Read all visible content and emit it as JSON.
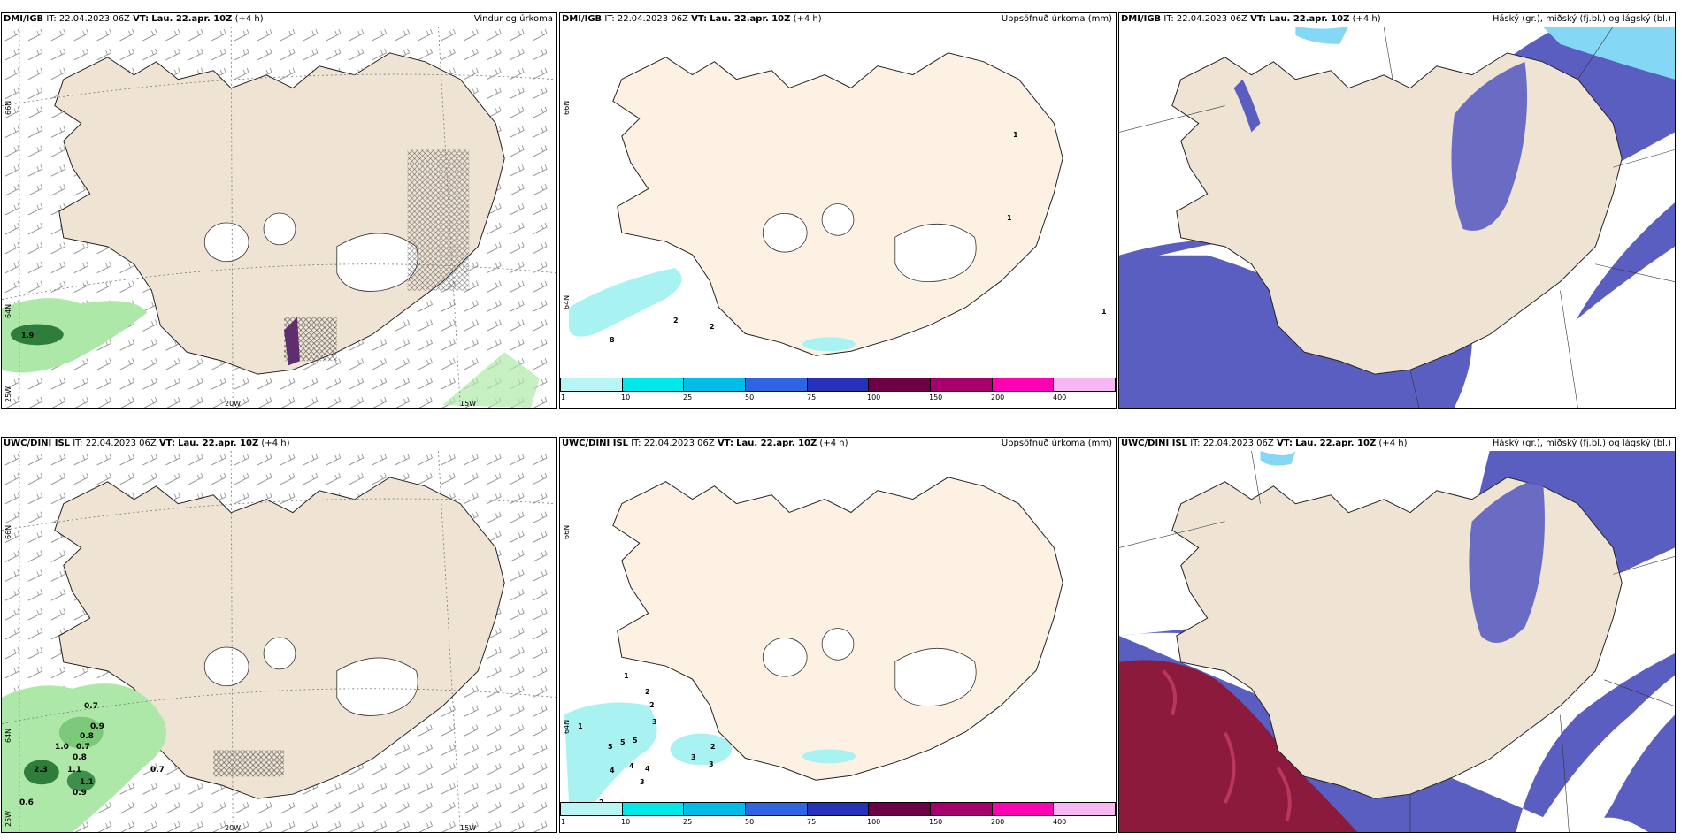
{
  "panels": [
    {
      "source": "DMI/IGB",
      "it_label": "IT:",
      "it_value": "22.04.2023 06Z",
      "vt_label": "VT:",
      "vt_value": "Lau. 22.apr. 10Z",
      "lead": "(+4 h)",
      "right_title": "Vindur og úrkoma",
      "lat_labels": [
        "66N",
        "64N"
      ],
      "lon_labels": [
        "25W",
        "20W",
        "15W"
      ]
    },
    {
      "source": "DMI/IGB",
      "it_label": "IT:",
      "it_value": "22.04.2023 06Z",
      "vt_label": "VT:",
      "vt_value": "Lau. 22.apr. 10Z",
      "lead": "(+4 h)",
      "right_title": "Uppsöfnuð úrkoma (mm)",
      "lat_labels": [
        "66N",
        "64N"
      ],
      "numbers": [
        "1",
        "1",
        "1",
        "2",
        "2",
        "8"
      ]
    },
    {
      "source": "DMI/IGB",
      "it_label": "IT:",
      "it_value": "22.04.2023 06Z",
      "vt_label": "VT:",
      "vt_value": "Lau. 22.apr. 10Z",
      "lead": "(+4 h)",
      "right_title": "Háský (gr.), miðský (fj.bl.) og lágský (bl.)"
    },
    {
      "source": "UWC/DINI ISL",
      "it_label": "IT:",
      "it_value": "22.04.2023 06Z",
      "vt_label": "VT:",
      "vt_value": "Lau. 22.apr. 10Z",
      "lead": "(+4 h)",
      "right_title": "",
      "lat_labels": [
        "66N",
        "64N"
      ],
      "lon_labels": [
        "25W",
        "20W",
        "15W"
      ],
      "precip_values": [
        "0.7",
        "0.9",
        "0.8",
        "1.0",
        "0.7",
        "0.8",
        "2.3",
        "1.1",
        "1.1",
        "0.7",
        "0.9",
        "0.6"
      ]
    },
    {
      "source": "UWC/DINI ISL",
      "it_label": "IT:",
      "it_value": "22.04.2023 06Z",
      "vt_label": "VT:",
      "vt_value": "Lau. 22.apr. 10Z",
      "lead": "(+4 h)",
      "right_title": "Uppsöfnuð úrkoma (mm)",
      "lat_labels": [
        "66N",
        "64N"
      ],
      "numbers": [
        "1",
        "2",
        "2",
        "3",
        "1",
        "5",
        "5",
        "5",
        "4",
        "4",
        "4",
        "3",
        "3",
        "3",
        "2",
        "2"
      ]
    },
    {
      "source": "UWC/DINI ISL",
      "it_label": "IT:",
      "it_value": "22.04.2023 06Z",
      "vt_label": "VT:",
      "vt_value": "Lau. 22.apr. 10Z",
      "lead": "(+4 h)",
      "right_title": "Háský (gr.), miðský (fj.bl.) og lágský (bl.)"
    }
  ],
  "colorbar": {
    "colors": [
      "#b9f5f5",
      "#00e8e8",
      "#00bde8",
      "#2f65e3",
      "#2730b8",
      "#6e0046",
      "#a7006e",
      "#ff00b3",
      "#f7b7f0"
    ],
    "ticks": [
      "1",
      "10",
      "25",
      "50",
      "75",
      "100",
      "150",
      "200",
      "400"
    ]
  },
  "colors": {
    "land": "#efe3d4",
    "land_light": "#fdf1e4",
    "glacier": "#ffffff",
    "green_precip": "#aee8a8",
    "dark_green": "#2f7d3b",
    "high_cloud": "#8c1a3c",
    "mid_cloud": "#5a5ec0",
    "low_cloud": "#4f8df0",
    "low_cloud_light": "#84d8f6",
    "precip_cyan": "#a8f2f2"
  }
}
